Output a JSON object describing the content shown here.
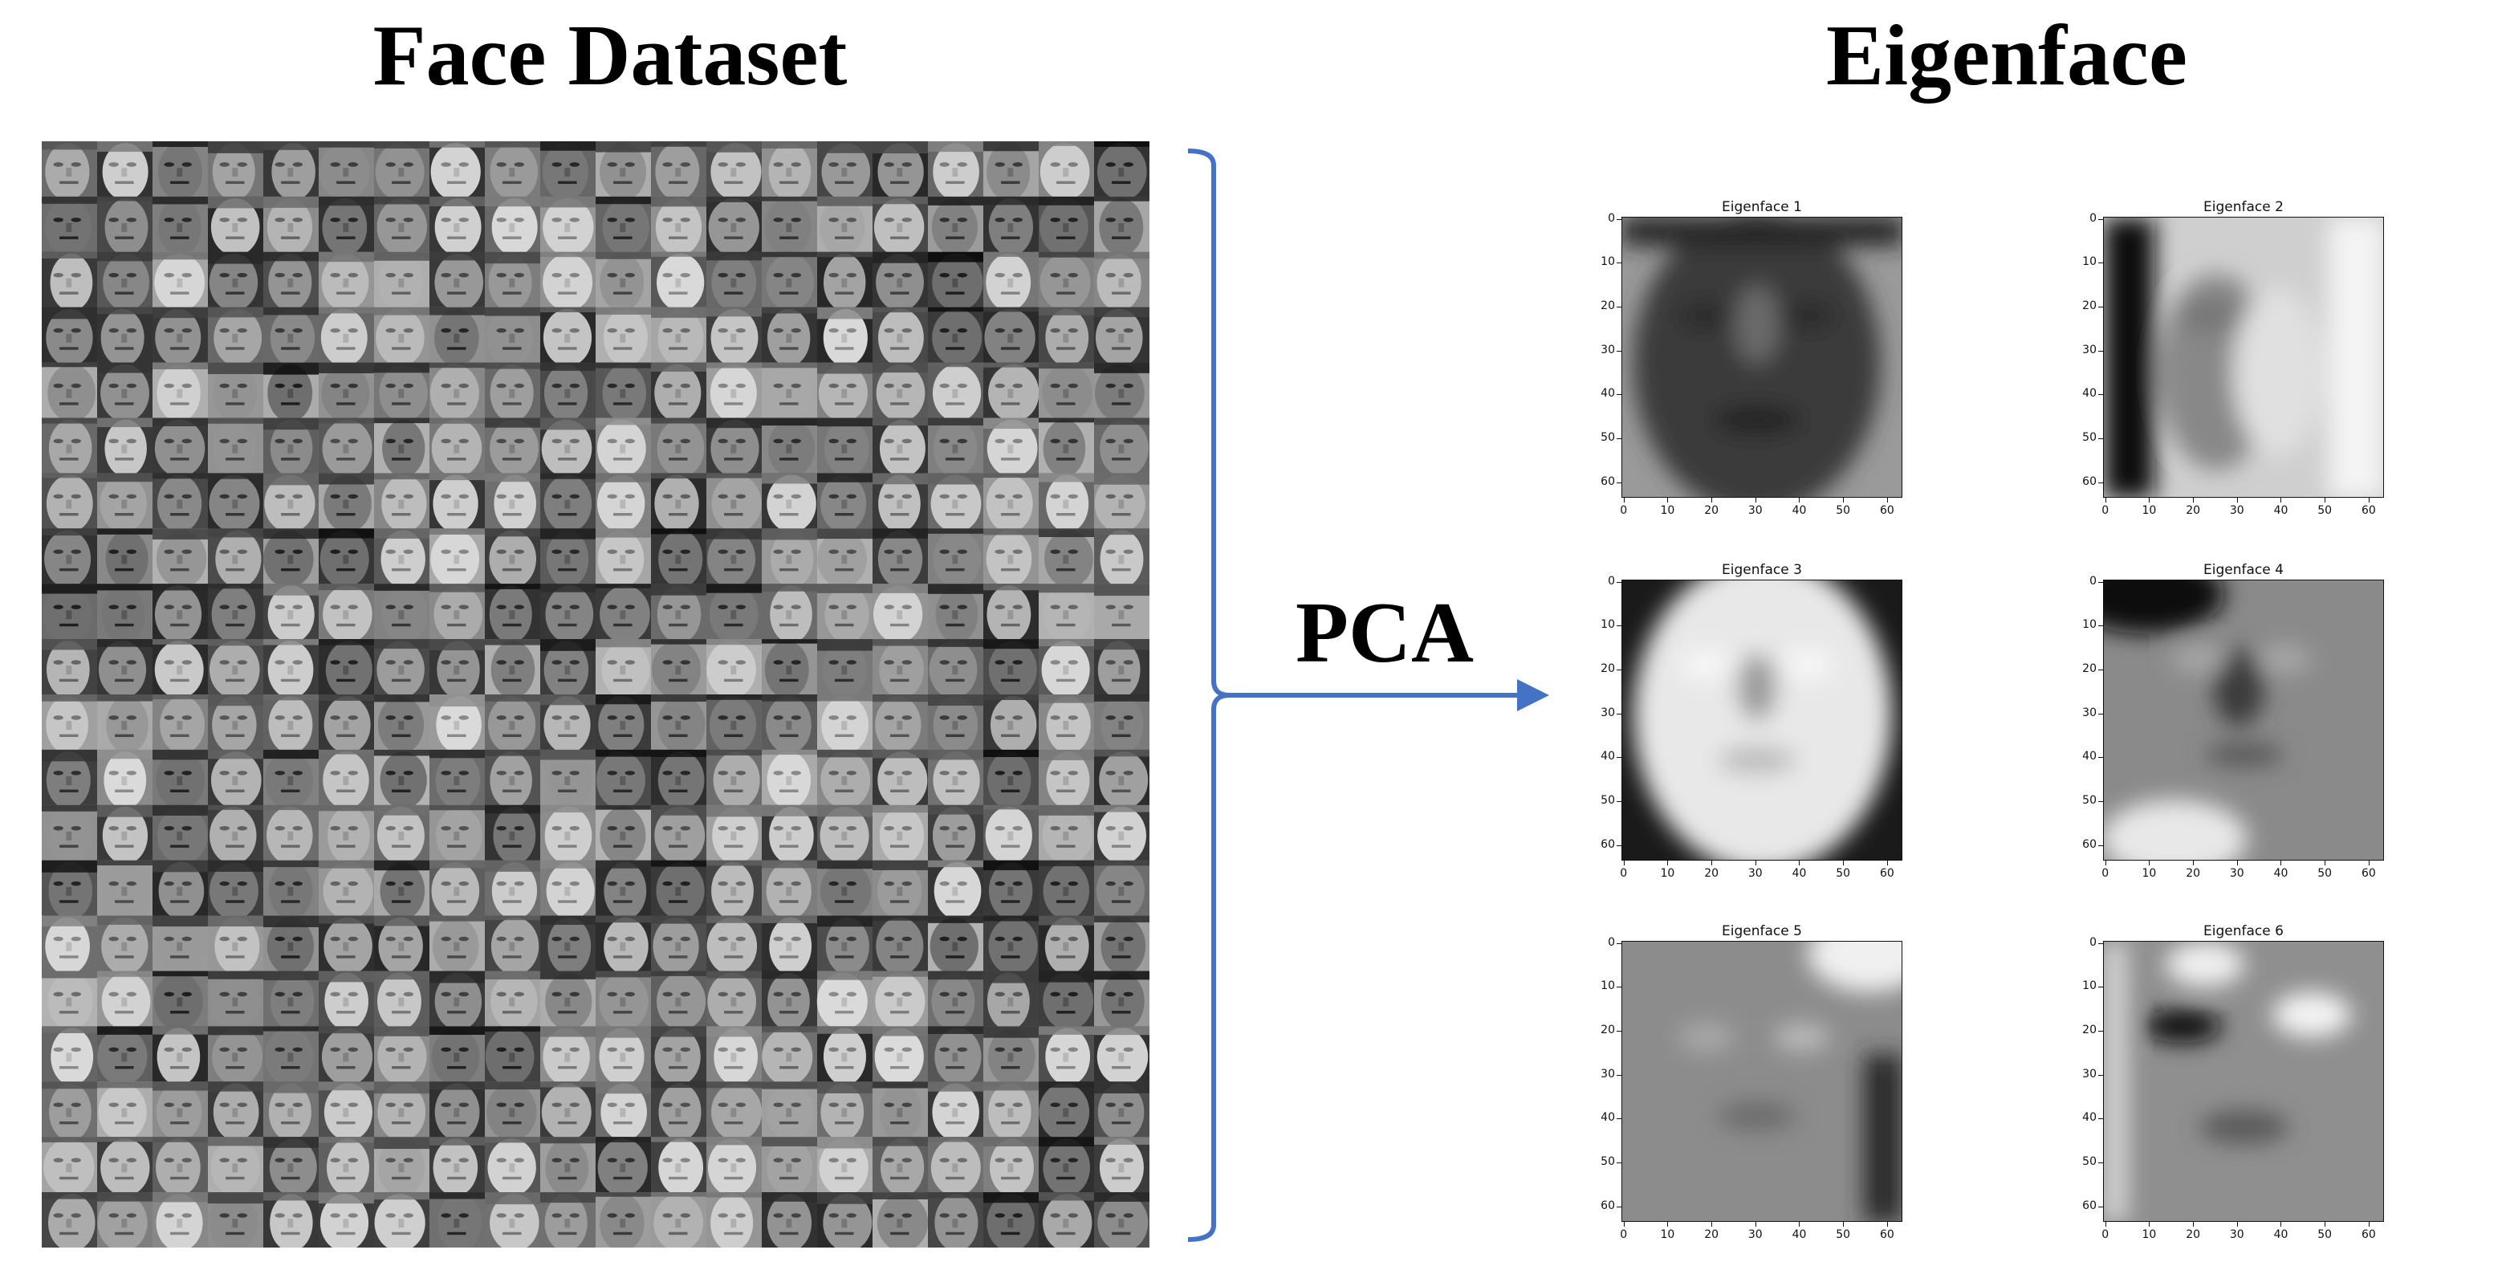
{
  "titles": {
    "left": "Face Dataset",
    "right": "Eigenface"
  },
  "arrow_label": "PCA",
  "colors": {
    "arrow": "#4472C4",
    "text": "#000000"
  },
  "eigenfaces": {
    "axis_ticks": [
      "0",
      "10",
      "20",
      "30",
      "40",
      "50",
      "60"
    ],
    "panels": [
      {
        "title": "Eigenface 1",
        "tone": "dark-face"
      },
      {
        "title": "Eigenface 2",
        "tone": "dark-left-light-right"
      },
      {
        "title": "Eigenface 3",
        "tone": "bright-face"
      },
      {
        "title": "Eigenface 4",
        "tone": "dark-top-left"
      },
      {
        "title": "Eigenface 5",
        "tone": "light-top-right"
      },
      {
        "title": "Eigenface 6",
        "tone": "dark-left-eye"
      }
    ]
  }
}
